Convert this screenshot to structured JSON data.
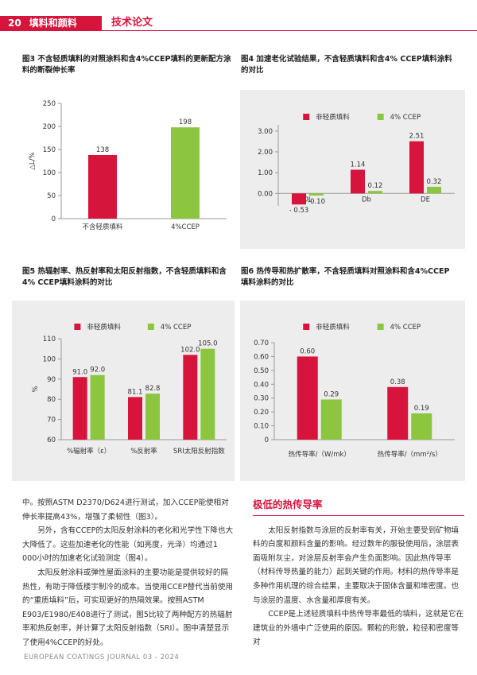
{
  "header": {
    "page": "20",
    "section": "填料和颜料",
    "category": "技术论文"
  },
  "chart_data": [
    {
      "type": "bar",
      "title": "图3 不含轻质填料的对照涂料和含4%CCEP填料的更新配方涂料的断裂伸长率",
      "categories": [
        "不含轻质填料",
        "4%CCEP"
      ],
      "values": [
        138,
        198
      ],
      "colors": [
        "#d7143c",
        "#8cc63f"
      ],
      "ylabel": "△L/%",
      "ylim": [
        0,
        250
      ],
      "yticks": [
        0,
        50,
        100,
        150,
        200,
        250
      ]
    },
    {
      "type": "bar",
      "title": "图4 加速老化试验结果，不含轻质填料和含4% CCEP填料涂料的对比",
      "categories": [
        "DL",
        "Db",
        "DE"
      ],
      "series": [
        {
          "name": "非轻质填料",
          "color": "#d7143c",
          "values": [
            -0.53,
            1.14,
            2.51
          ],
          "value_labels": [
            "- 0.53",
            "1.14",
            "2.51"
          ]
        },
        {
          "name": "4% CCEP",
          "color": "#8cc63f",
          "values": [
            -0.1,
            0.12,
            0.32
          ],
          "value_labels": [
            "-0.10",
            "0.12",
            "0.32"
          ]
        }
      ],
      "ylim": [
        -0.6,
        3.3
      ],
      "yticks": [
        {
          "value": 0,
          "label": "0.00"
        },
        {
          "value": 1,
          "label": "1.00"
        },
        {
          "value": 2,
          "label": "2.00"
        },
        {
          "value": 3,
          "label": "3.00"
        }
      ]
    },
    {
      "type": "bar",
      "title": "图5 热辐射率、热反射率和太阳反射指数，不含轻质填料和含4% CCEP填料涂料的对比",
      "categories": [
        "%辐射率（ε）",
        "%反射率",
        "SRI太阳反射指数"
      ],
      "series": [
        {
          "name": "非轻质填料",
          "color": "#d7143c",
          "values": [
            91.0,
            81.1,
            102.0
          ],
          "value_labels": [
            "91.0",
            "81.1",
            "102.0"
          ]
        },
        {
          "name": "4% CCEP",
          "color": "#8cc63f",
          "values": [
            92.0,
            82.8,
            105.0
          ],
          "value_labels": [
            "92.0",
            "82.8",
            "105.0"
          ]
        }
      ],
      "ylabel": "%",
      "ylim": [
        60,
        110
      ],
      "yticks": [
        60,
        70,
        80,
        90,
        100,
        110
      ]
    },
    {
      "type": "bar",
      "title": "图6 热传导和热扩散率，不含轻质填料对照涂料和含4%CCEP填料涂料的对比",
      "categories": [
        "热传导率/（W/mk）",
        "热传导率/（mm²/s）"
      ],
      "series": [
        {
          "name": "非轻质填料",
          "color": "#d7143c",
          "values": [
            0.6,
            0.38
          ],
          "value_labels": [
            "0.60",
            "0.38"
          ]
        },
        {
          "name": "4% CCEP",
          "color": "#8cc63f",
          "values": [
            0.29,
            0.19
          ],
          "value_labels": [
            "0.29",
            "0.19"
          ]
        }
      ],
      "ylim": [
        0,
        0.7
      ],
      "yticks": [
        0,
        {
          "value": 0.1,
          "label": "0.10"
        },
        {
          "value": 0.2,
          "label": "0.20"
        },
        {
          "value": 0.3,
          "label": "0.30"
        },
        {
          "value": 0.4,
          "label": "0.40"
        },
        {
          "value": 0.5,
          "label": "0.50"
        },
        {
          "value": 0.6,
          "label": "0.60"
        },
        {
          "value": 0.7,
          "label": "0.70"
        }
      ]
    }
  ],
  "left_text": [
    "中。按照ASTM D2370/D624进行测试，加入CCEP能使相对伸长率提高43%，增强了柔韧性（图3）。",
    "另外，含有CCEP的太阳反射涂料的老化和光学性下降也大大降低了。这些加速老化的性能（如亮度，光泽）均通过1 000小时的加速老化试验测定（图4）。",
    "太阳反射涂料或弹性屋面涂料的主要功能是提供较好的隔热性，有助于降低楼宇制冷的成本。当使用CCEP替代当前使用的“重质填料”后，可实现更好的热隔效果。按照ASTM E903/E1980/E408进行了测试，图5比较了两种配方的热辐射率和热反射率，并计算了太阳反射指数（SRI）。图中清楚显示了使用4%CCEP的好处。"
  ],
  "right_heading": "极低的热传导率",
  "right_text": [
    "太阳反射指数与涂层的反射率有关，开始主要受到矿物填料的白度和颜料含量的影响。经过数年的服役使用后，涂层表面吸附灰尘，对涂层反射率会产生负面影响。因此热传导率（材料传导热量的能力）起到关键的作用。材料的热传导率是多种作用机理的综合结果，主要取决于固体含量和堆密度。也与涂层的温度、水含量和厚度有关。",
    "CCEP是上述轻质填料中热传导率最低的填料，这就是它在建筑业的外墙中广泛使用的原因。颗粒的形貌，粒径和密度等对"
  ],
  "footer": "EUROPEAN COATINGS JOURNAL 03 - 2024"
}
